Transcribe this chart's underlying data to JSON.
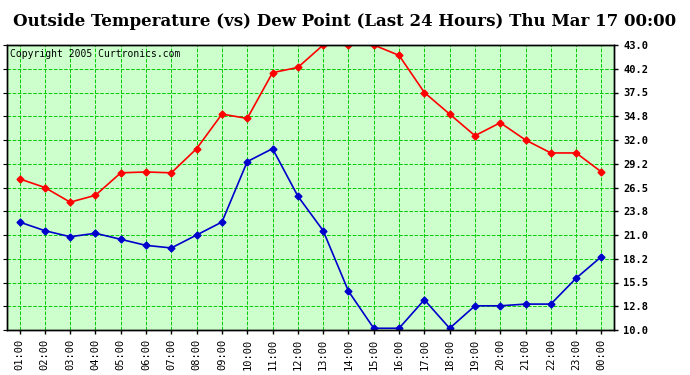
{
  "title": "Outside Temperature (vs) Dew Point (Last 24 Hours) Thu Mar 17 00:00",
  "copyright": "Copyright 2005 Curtronics.com",
  "x_labels": [
    "01:00",
    "02:00",
    "03:00",
    "04:00",
    "05:00",
    "06:00",
    "07:00",
    "08:00",
    "09:00",
    "10:00",
    "11:00",
    "12:00",
    "13:00",
    "14:00",
    "15:00",
    "16:00",
    "17:00",
    "18:00",
    "19:00",
    "20:00",
    "21:00",
    "22:00",
    "23:00",
    "00:00"
  ],
  "red_values": [
    27.5,
    26.5,
    24.8,
    25.6,
    28.2,
    28.3,
    28.2,
    31.0,
    35.0,
    34.5,
    39.8,
    40.4,
    43.0,
    43.0,
    43.0,
    41.8,
    37.5,
    35.0,
    32.5,
    34.0,
    32.0,
    30.5,
    30.5,
    28.3
  ],
  "blue_values": [
    22.5,
    21.5,
    20.8,
    21.2,
    20.5,
    19.8,
    19.5,
    21.0,
    22.5,
    29.5,
    31.0,
    25.5,
    21.5,
    14.5,
    10.2,
    10.2,
    13.5,
    10.2,
    12.8,
    12.8,
    13.0,
    13.0,
    16.0,
    18.5
  ],
  "red_color": "#ff0000",
  "blue_color": "#0000cc",
  "bg_color": "#ffffff",
  "plot_bg_color": "#ccffcc",
  "grid_color": "#00cc00",
  "ylim": [
    10.0,
    43.0
  ],
  "yticks": [
    10.0,
    12.8,
    15.5,
    18.2,
    21.0,
    23.8,
    26.5,
    29.2,
    32.0,
    34.8,
    37.5,
    40.2,
    43.0
  ],
  "title_fontsize": 12,
  "copyright_fontsize": 7,
  "tick_fontsize": 7.5,
  "marker": "D",
  "markersize": 3.5
}
